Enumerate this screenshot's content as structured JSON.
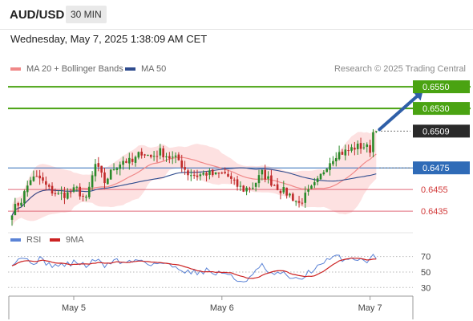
{
  "header": {
    "symbol": "AUD/USD",
    "timeframe": "30 MIN"
  },
  "datetime": "Wednesday, May 7, 2025 1:38:09 AM CET",
  "credit": "Research © 2025 Trading Central",
  "colors": {
    "up": "#2a8a2a",
    "down": "#c02a2a",
    "ma20": "#f08888",
    "bollinger_fill": "#fde1e1",
    "ma50": "#2f4c8e",
    "resistance": "#4aa312",
    "pivot": "#2f6bb7",
    "support": "#e06a7a",
    "rsi": "#5b83d6",
    "rsi_ma": "#cc2222",
    "arrow": "#2f5fa8"
  },
  "chart_data": [
    {
      "type": "candlestick",
      "legend": [
        {
          "name": "MA 20 + Bollinger Bands",
          "color": "#f08888"
        },
        {
          "name": "MA 50",
          "color": "#2f4c8e"
        }
      ],
      "x_ticks": [
        {
          "label": "May 5",
          "index": 20
        },
        {
          "label": "May 6",
          "index": 68
        },
        {
          "label": "May 7",
          "index": 116
        }
      ],
      "ylim": [
        0.6418,
        0.6559
      ],
      "levels": [
        {
          "value": 0.655,
          "label": "0.6550",
          "kind": "resistance"
        },
        {
          "value": 0.653,
          "label": "0.6530",
          "kind": "resistance"
        },
        {
          "value": 0.6509,
          "label": "0.6509",
          "kind": "last"
        },
        {
          "value": 0.6475,
          "label": "0.6475",
          "kind": "pivot"
        },
        {
          "value": 0.6455,
          "label": "0.6455",
          "kind": "support"
        },
        {
          "value": 0.6435,
          "label": "0.6435",
          "kind": "support"
        }
      ],
      "arrow": {
        "from_index": 118,
        "from_value": 0.6509,
        "to_index": 130,
        "to_value": 0.6546
      },
      "anchors": [
        [
          0,
          0.6435
        ],
        [
          3,
          0.6445
        ],
        [
          6,
          0.6465
        ],
        [
          9,
          0.6465
        ],
        [
          12,
          0.6455
        ],
        [
          15,
          0.645
        ],
        [
          18,
          0.6451
        ],
        [
          21,
          0.6455
        ],
        [
          24,
          0.6445
        ],
        [
          27,
          0.6478
        ],
        [
          30,
          0.6462
        ],
        [
          33,
          0.6475
        ],
        [
          36,
          0.6482
        ],
        [
          39,
          0.648
        ],
        [
          42,
          0.649
        ],
        [
          45,
          0.6485
        ],
        [
          48,
          0.649
        ],
        [
          51,
          0.6485
        ],
        [
          54,
          0.6482
        ],
        [
          57,
          0.647
        ],
        [
          60,
          0.6468
        ],
        [
          63,
          0.647
        ],
        [
          66,
          0.6468
        ],
        [
          69,
          0.647
        ],
        [
          72,
          0.646
        ],
        [
          75,
          0.6455
        ],
        [
          78,
          0.6458
        ],
        [
          81,
          0.647
        ],
        [
          84,
          0.6462
        ],
        [
          87,
          0.6455
        ],
        [
          90,
          0.645
        ],
        [
          93,
          0.6442
        ],
        [
          96,
          0.6452
        ],
        [
          99,
          0.6462
        ],
        [
          102,
          0.6478
        ],
        [
          105,
          0.6488
        ],
        [
          108,
          0.649
        ],
        [
          111,
          0.6494
        ],
        [
          114,
          0.6495
        ],
        [
          116,
          0.6492
        ],
        [
          117,
          0.6508
        ],
        [
          118,
          0.6509
        ]
      ],
      "candle_count": 119
    },
    {
      "type": "line",
      "legend": [
        {
          "name": "RSI",
          "color": "#5b83d6"
        },
        {
          "name": "9MA",
          "color": "#cc2222"
        }
      ],
      "y_ticks": [
        70,
        50,
        30
      ],
      "ylim": [
        22,
        80
      ],
      "rsi_anchors": [
        [
          0,
          62
        ],
        [
          3,
          70
        ],
        [
          6,
          62
        ],
        [
          9,
          66
        ],
        [
          12,
          60
        ],
        [
          15,
          58
        ],
        [
          18,
          60
        ],
        [
          21,
          63
        ],
        [
          24,
          58
        ],
        [
          27,
          66
        ],
        [
          30,
          58
        ],
        [
          33,
          66
        ],
        [
          36,
          62
        ],
        [
          39,
          64
        ],
        [
          42,
          66
        ],
        [
          45,
          60
        ],
        [
          48,
          62
        ],
        [
          51,
          58
        ],
        [
          54,
          56
        ],
        [
          57,
          50
        ],
        [
          60,
          50
        ],
        [
          63,
          52
        ],
        [
          66,
          48
        ],
        [
          69,
          50
        ],
        [
          72,
          40
        ],
        [
          75,
          38
        ],
        [
          78,
          46
        ],
        [
          81,
          58
        ],
        [
          84,
          46
        ],
        [
          87,
          48
        ],
        [
          90,
          44
        ],
        [
          93,
          38
        ],
        [
          96,
          50
        ],
        [
          99,
          56
        ],
        [
          102,
          64
        ],
        [
          105,
          70
        ],
        [
          108,
          66
        ],
        [
          111,
          68
        ],
        [
          114,
          66
        ],
        [
          116,
          64
        ],
        [
          117,
          72
        ],
        [
          118,
          70
        ]
      ]
    }
  ]
}
